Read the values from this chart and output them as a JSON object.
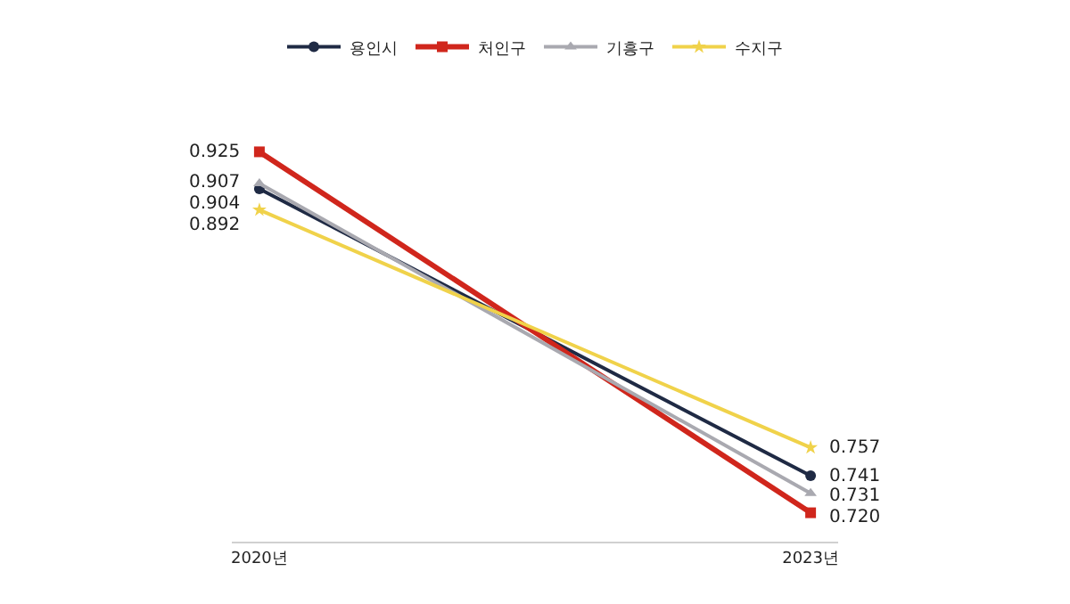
{
  "chart_data": {
    "type": "line",
    "categories": [
      "2020년",
      "2023년"
    ],
    "series": [
      {
        "name": "용인시",
        "color": "#1f2a44",
        "values": [
          0.904,
          0.741
        ],
        "value_labels": [
          "0.904",
          "0.741"
        ],
        "marker": "circle"
      },
      {
        "name": "처인구",
        "color": "#d0261c",
        "values": [
          0.925,
          0.72
        ],
        "value_labels": [
          "0.925",
          "0.720"
        ],
        "marker": "square"
      },
      {
        "name": "기흥구",
        "color": "#a9a9b0",
        "values": [
          0.907,
          0.731
        ],
        "value_labels": [
          "0.907",
          "0.731"
        ],
        "marker": "triangle"
      },
      {
        "name": "수지구",
        "color": "#f0d24a",
        "values": [
          0.892,
          0.757
        ],
        "value_labels": [
          "0.892",
          "0.757"
        ],
        "marker": "star"
      }
    ],
    "legend": "top",
    "line_style": "solid",
    "tick_labels": "x"
  }
}
